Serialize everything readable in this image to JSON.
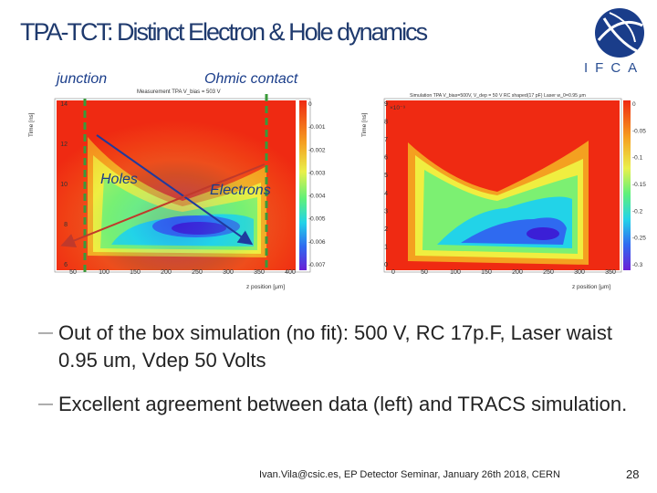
{
  "slide": {
    "title": "TPA-TCT: Distinct Electron & Hole dynamics",
    "logo_text": "IFCA"
  },
  "annotations": {
    "junction": "junction",
    "ohmic": "Ohmic contact",
    "holes": "Holes",
    "electrons": "Electrons"
  },
  "chart_data": [
    {
      "type": "heatmap",
      "title": "Measurement TPA V_bias = 503 V",
      "xlabel": "z position [μm]",
      "ylabel": "Time [ns]",
      "x_ticks": [
        "50",
        "100",
        "150",
        "200",
        "250",
        "300",
        "350",
        "400"
      ],
      "y_ticks": [
        "6",
        "8",
        "10",
        "12",
        "14"
      ],
      "colorbar_ticks": [
        "0",
        "-0.001",
        "-0.002",
        "-0.003",
        "-0.004",
        "-0.005",
        "-0.006",
        "-0.007"
      ]
    },
    {
      "type": "heatmap",
      "title": "Simulation TPA V_bias=500V, V_dep = 50 V RC shaped(17 pF) Laser w_0=0.95 μm",
      "xlabel": "z position [μm]",
      "ylabel": "Time [ns]",
      "y_exponent": "×10⁻⁹",
      "x_ticks": [
        "0",
        "50",
        "100",
        "150",
        "200",
        "250",
        "300",
        "350"
      ],
      "y_ticks": [
        "0",
        "1",
        "2",
        "3",
        "4",
        "5",
        "6",
        "7",
        "8",
        "9"
      ],
      "colorbar_ticks": [
        "0",
        "-0.05",
        "-0.1",
        "-0.15",
        "-0.2",
        "-0.25",
        "-0.3"
      ]
    }
  ],
  "bullets": [
    "Out of the box simulation (no fit): 500 V, RC 17p.F, Laser waist 0.95 um, Vdep 50 Volts",
    "Excellent agreement between data (left) and TRACS simulation."
  ],
  "footer": "Ivan.Vila@csic.es, EP Detector Seminar, January 26th 2018, CERN",
  "page_number": "28"
}
